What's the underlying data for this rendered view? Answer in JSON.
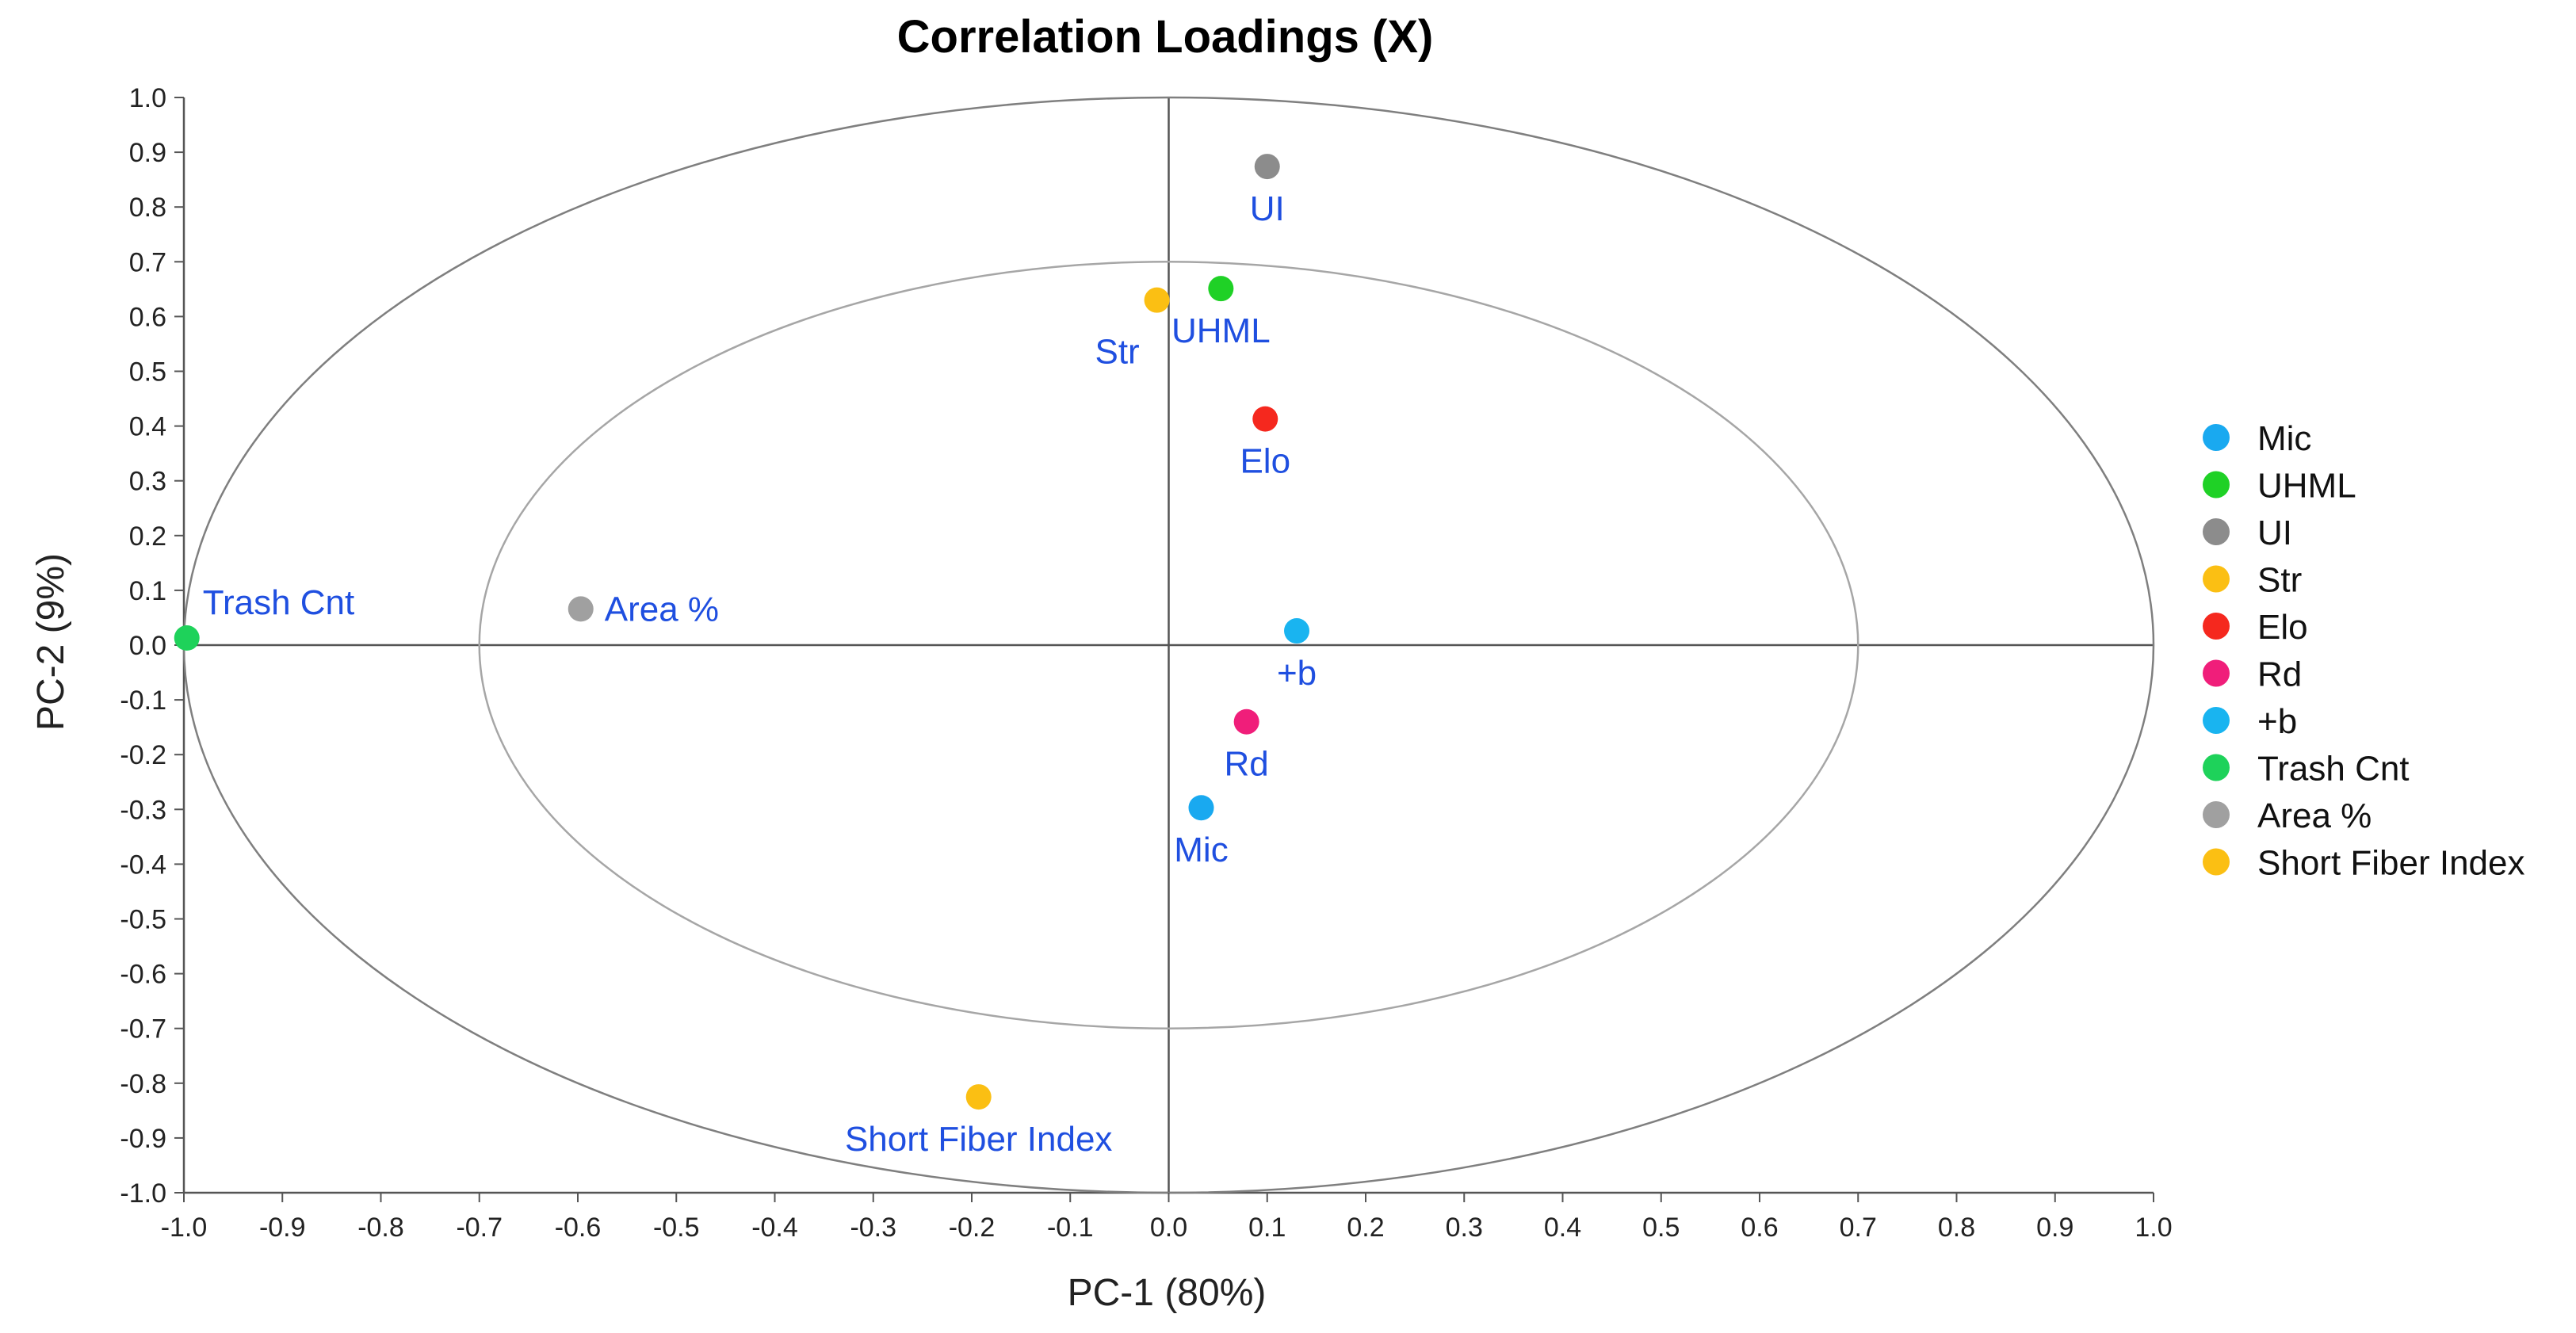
{
  "chart_data": {
    "type": "scatter",
    "title": "Correlation Loadings (X)",
    "xlabel": "PC-1 (80%)",
    "ylabel": "PC-2 (9%)",
    "xlim": [
      -1.0,
      1.0
    ],
    "ylim": [
      -1.0,
      1.0
    ],
    "xticks": [
      "-1.0",
      "-0.9",
      "-0.8",
      "-0.7",
      "-0.6",
      "-0.5",
      "-0.4",
      "-0.3",
      "-0.2",
      "-0.1",
      "0.0",
      "0.1",
      "0.2",
      "0.3",
      "0.4",
      "0.5",
      "0.6",
      "0.7",
      "0.8",
      "0.9",
      "1.0"
    ],
    "yticks": [
      "1.0",
      "0.9",
      "0.8",
      "0.7",
      "0.6",
      "0.5",
      "0.4",
      "0.3",
      "0.2",
      "0.1",
      "0.0",
      "-0.1",
      "-0.2",
      "-0.3",
      "-0.4",
      "-0.5",
      "-0.6",
      "-0.7",
      "-0.8",
      "-0.9",
      "-1.0"
    ],
    "circles": [
      {
        "name": "outer",
        "radius": 1.0,
        "color": "#7f7f7f"
      },
      {
        "name": "inner",
        "radius": 0.7,
        "color": "#a6a6a6"
      }
    ],
    "label_color": "#1f4fe0",
    "series": [
      {
        "name": "Mic",
        "x": 0.033,
        "y": -0.297,
        "color": "#19a9f0",
        "label_pos": "below"
      },
      {
        "name": "UHML",
        "x": 0.053,
        "y": 0.651,
        "color": "#1fd126",
        "label_pos": "below"
      },
      {
        "name": "UI",
        "x": 0.1,
        "y": 0.874,
        "color": "#8c8c8c",
        "label_pos": "below"
      },
      {
        "name": "Str",
        "x": -0.012,
        "y": 0.63,
        "color": "#fbbf13",
        "label_pos": "below-left"
      },
      {
        "name": "Elo",
        "x": 0.098,
        "y": 0.413,
        "color": "#f5281e",
        "label_pos": "below"
      },
      {
        "name": "Rd",
        "x": 0.079,
        "y": -0.14,
        "color": "#f01e7a",
        "label_pos": "below"
      },
      {
        "name": "+b",
        "x": 0.13,
        "y": 0.026,
        "color": "#19b4f0",
        "label_pos": "below"
      },
      {
        "name": "Trash Cnt",
        "x": -0.997,
        "y": 0.013,
        "color": "#1ed25a",
        "label_pos": "above-right"
      },
      {
        "name": "Area %",
        "x": -0.597,
        "y": 0.066,
        "color": "#a0a0a0",
        "label_pos": "right"
      },
      {
        "name": "Short Fiber Index",
        "x": -0.193,
        "y": -0.825,
        "color": "#fbbf13",
        "label_pos": "below"
      }
    ]
  }
}
